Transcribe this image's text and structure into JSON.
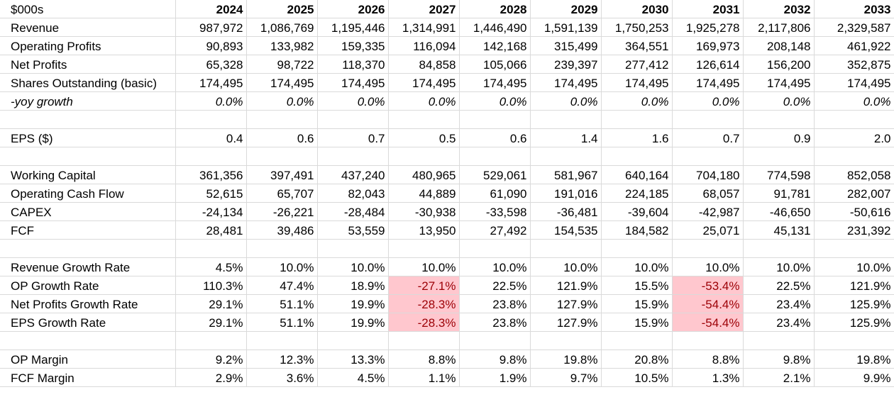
{
  "sheet": {
    "corner_label": "$000s",
    "years": [
      "2024",
      "2025",
      "2026",
      "2027",
      "2028",
      "2029",
      "2030",
      "2031",
      "2032",
      "2033"
    ],
    "highlight_color": "#ffc7ce",
    "highlight_text_color": "#9c0006",
    "rows": [
      {
        "label": "Revenue",
        "values": [
          "987,972",
          "1,086,769",
          "1,195,446",
          "1,314,991",
          "1,446,490",
          "1,591,139",
          "1,750,253",
          "1,925,278",
          "2,117,806",
          "2,329,587"
        ]
      },
      {
        "label": "Operating Profits",
        "values": [
          "90,893",
          "133,982",
          "159,335",
          "116,094",
          "142,168",
          "315,499",
          "364,551",
          "169,973",
          "208,148",
          "461,922"
        ]
      },
      {
        "label": "Net Profits",
        "values": [
          "65,328",
          "98,722",
          "118,370",
          "84,858",
          "105,066",
          "239,397",
          "277,412",
          "126,614",
          "156,200",
          "352,875"
        ]
      },
      {
        "label": "Shares Outstanding (basic)",
        "values": [
          "174,495",
          "174,495",
          "174,495",
          "174,495",
          "174,495",
          "174,495",
          "174,495",
          "174,495",
          "174,495",
          "174,495"
        ]
      },
      {
        "label": "-yoy growth",
        "italic": true,
        "values": [
          "0.0%",
          "0.0%",
          "0.0%",
          "0.0%",
          "0.0%",
          "0.0%",
          "0.0%",
          "0.0%",
          "0.0%",
          "0.0%"
        ]
      },
      {
        "blank": true
      },
      {
        "label": "EPS ($)",
        "values": [
          "0.4",
          "0.6",
          "0.7",
          "0.5",
          "0.6",
          "1.4",
          "1.6",
          "0.7",
          "0.9",
          "2.0"
        ]
      },
      {
        "blank": true
      },
      {
        "label": "Working Capital",
        "values": [
          "361,356",
          "397,491",
          "437,240",
          "480,965",
          "529,061",
          "581,967",
          "640,164",
          "704,180",
          "774,598",
          "852,058"
        ]
      },
      {
        "label": "Operating Cash Flow",
        "values": [
          "52,615",
          "65,707",
          "82,043",
          "44,889",
          "61,090",
          "191,016",
          "224,185",
          "68,057",
          "91,781",
          "282,007"
        ]
      },
      {
        "label": "CAPEX",
        "values": [
          "-24,134",
          "-26,221",
          "-28,484",
          "-30,938",
          "-33,598",
          "-36,481",
          "-39,604",
          "-42,987",
          "-46,650",
          "-50,616"
        ]
      },
      {
        "label": "FCF",
        "values": [
          "28,481",
          "39,486",
          "53,559",
          "13,950",
          "27,492",
          "154,535",
          "184,582",
          "25,071",
          "45,131",
          "231,392"
        ]
      },
      {
        "blank": true
      },
      {
        "label": "Revenue Growth Rate",
        "values": [
          "4.5%",
          "10.0%",
          "10.0%",
          "10.0%",
          "10.0%",
          "10.0%",
          "10.0%",
          "10.0%",
          "10.0%",
          "10.0%"
        ]
      },
      {
        "label": "OP Growth Rate",
        "highlight": [
          3,
          7
        ],
        "values": [
          "110.3%",
          "47.4%",
          "18.9%",
          "-27.1%",
          "22.5%",
          "121.9%",
          "15.5%",
          "-53.4%",
          "22.5%",
          "121.9%"
        ]
      },
      {
        "label": "Net Profits Growth Rate",
        "highlight": [
          3,
          7
        ],
        "values": [
          "29.1%",
          "51.1%",
          "19.9%",
          "-28.3%",
          "23.8%",
          "127.9%",
          "15.9%",
          "-54.4%",
          "23.4%",
          "125.9%"
        ]
      },
      {
        "label": "EPS Growth Rate",
        "highlight": [
          3,
          7
        ],
        "values": [
          "29.1%",
          "51.1%",
          "19.9%",
          "-28.3%",
          "23.8%",
          "127.9%",
          "15.9%",
          "-54.4%",
          "23.4%",
          "125.9%"
        ]
      },
      {
        "blank": true
      },
      {
        "label": "OP Margin",
        "values": [
          "9.2%",
          "12.3%",
          "13.3%",
          "8.8%",
          "9.8%",
          "19.8%",
          "20.8%",
          "8.8%",
          "9.8%",
          "19.8%"
        ]
      },
      {
        "label": "FCF Margin",
        "values": [
          "2.9%",
          "3.6%",
          "4.5%",
          "1.1%",
          "1.9%",
          "9.7%",
          "10.5%",
          "1.3%",
          "2.1%",
          "9.9%"
        ]
      }
    ]
  }
}
